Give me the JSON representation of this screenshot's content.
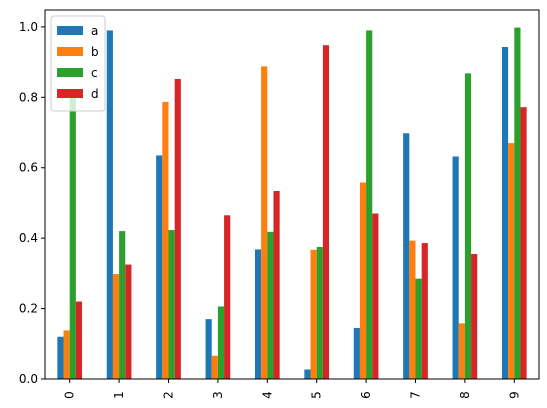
{
  "chart_data": {
    "type": "bar",
    "categories": [
      "0",
      "1",
      "2",
      "3",
      "4",
      "5",
      "6",
      "7",
      "8",
      "9"
    ],
    "series": [
      {
        "name": "a",
        "color": "#1f77b4",
        "values": [
          0.12,
          0.99,
          0.635,
          0.17,
          0.368,
          0.027,
          0.145,
          0.698,
          0.632,
          0.943
        ]
      },
      {
        "name": "b",
        "color": "#ff7f0e",
        "values": [
          0.138,
          0.298,
          0.787,
          0.066,
          0.888,
          0.367,
          0.558,
          0.393,
          0.158,
          0.67
        ]
      },
      {
        "name": "c",
        "color": "#2ca02c",
        "values": [
          0.82,
          0.42,
          0.423,
          0.206,
          0.418,
          0.375,
          0.99,
          0.285,
          0.868,
          0.998
        ]
      },
      {
        "name": "d",
        "color": "#d62728",
        "values": [
          0.22,
          0.325,
          0.852,
          0.465,
          0.534,
          0.948,
          0.47,
          0.386,
          0.355,
          0.772
        ]
      }
    ],
    "yticks": [
      "0.0",
      "0.2",
      "0.4",
      "0.6",
      "0.8",
      "1.0"
    ],
    "ylim": [
      0,
      1.048
    ],
    "title": "",
    "xlabel": "",
    "ylabel": "",
    "grid": false,
    "legend_position": "top-left"
  }
}
